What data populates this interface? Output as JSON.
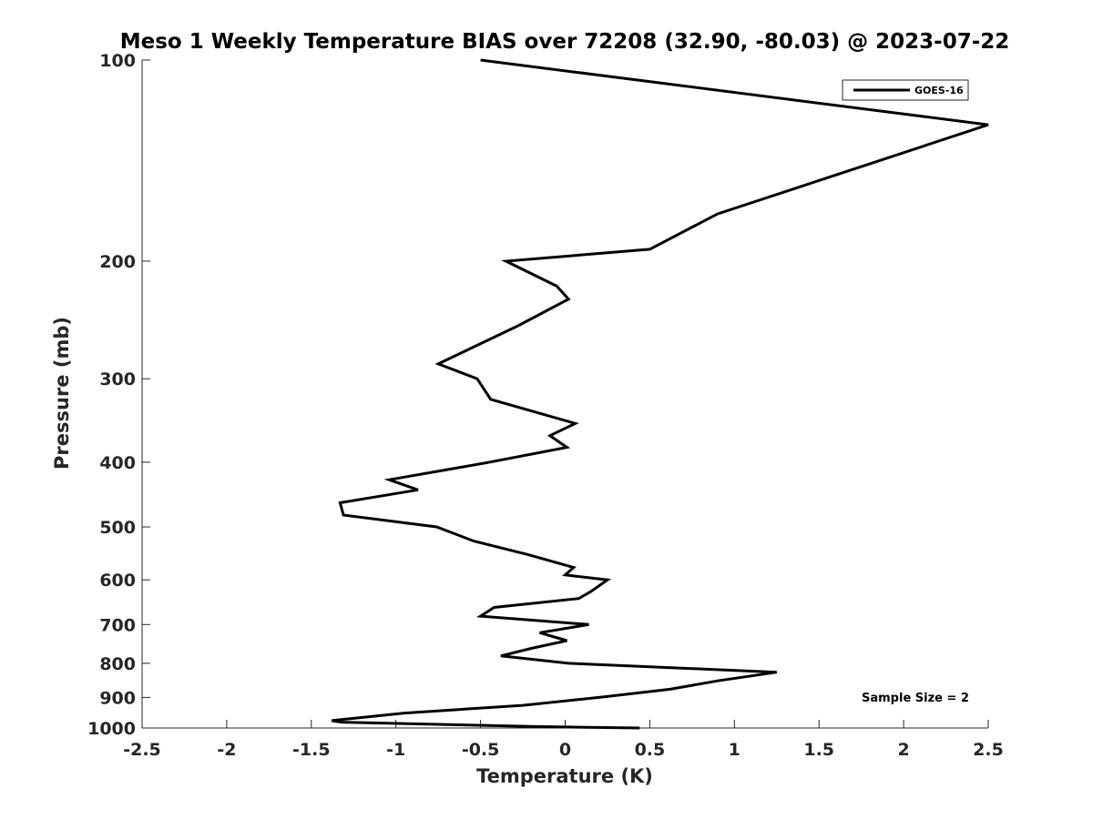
{
  "chart_data": {
    "type": "line",
    "title": "Meso 1 Weekly Temperature BIAS over 72208 (32.90, -80.03) @ 2023-07-22",
    "xlabel": "Temperature (K)",
    "ylabel": "Pressure (mb)",
    "xlim": [
      -2.5,
      2.5
    ],
    "ylim": [
      100,
      1000
    ],
    "y_scale": "log",
    "y_reversed": true,
    "grid": false,
    "x_ticks": [
      -2.5,
      -2,
      -1.5,
      -1,
      -0.5,
      0,
      0.5,
      1,
      1.5,
      2,
      2.5
    ],
    "x_tick_labels": [
      "-2.5",
      "-2",
      "-1.5",
      "-1",
      "-0.5",
      "0",
      "0.5",
      "1",
      "1.5",
      "2",
      "2.5"
    ],
    "y_ticks": [
      100,
      200,
      300,
      400,
      500,
      600,
      700,
      800,
      900,
      1000
    ],
    "y_tick_labels": [
      "100",
      "200",
      "300",
      "400",
      "500",
      "600",
      "700",
      "800",
      "900",
      "1000"
    ],
    "legend": {
      "placement": "top-right"
    },
    "annotation": "Sample Size = 2",
    "series": [
      {
        "name": "GOES-16",
        "color": "#000000",
        "points": [
          {
            "x": -0.5,
            "y": 100
          },
          {
            "x": 2.5,
            "y": 125
          },
          {
            "x": 1.55,
            "y": 150
          },
          {
            "x": 0.9,
            "y": 170
          },
          {
            "x": 0.5,
            "y": 192
          },
          {
            "x": -0.35,
            "y": 200
          },
          {
            "x": -0.05,
            "y": 218
          },
          {
            "x": 0.02,
            "y": 228
          },
          {
            "x": -0.28,
            "y": 250
          },
          {
            "x": -0.75,
            "y": 285
          },
          {
            "x": -0.52,
            "y": 300
          },
          {
            "x": -0.44,
            "y": 322
          },
          {
            "x": 0.06,
            "y": 350
          },
          {
            "x": -0.09,
            "y": 365
          },
          {
            "x": 0.01,
            "y": 380
          },
          {
            "x": -0.47,
            "y": 401
          },
          {
            "x": -1.04,
            "y": 425
          },
          {
            "x": -0.87,
            "y": 440
          },
          {
            "x": -1.33,
            "y": 460
          },
          {
            "x": -1.31,
            "y": 480
          },
          {
            "x": -0.76,
            "y": 500
          },
          {
            "x": -0.54,
            "y": 525
          },
          {
            "x": -0.22,
            "y": 550
          },
          {
            "x": 0.05,
            "y": 575
          },
          {
            "x": 0.0,
            "y": 590
          },
          {
            "x": 0.25,
            "y": 600
          },
          {
            "x": 0.15,
            "y": 625
          },
          {
            "x": 0.08,
            "y": 640
          },
          {
            "x": -0.42,
            "y": 660
          },
          {
            "x": -0.5,
            "y": 680
          },
          {
            "x": 0.14,
            "y": 700
          },
          {
            "x": -0.15,
            "y": 720
          },
          {
            "x": 0.01,
            "y": 740
          },
          {
            "x": -0.2,
            "y": 760
          },
          {
            "x": -0.38,
            "y": 780
          },
          {
            "x": 0.02,
            "y": 800
          },
          {
            "x": 1.25,
            "y": 825
          },
          {
            "x": 0.9,
            "y": 850
          },
          {
            "x": 0.62,
            "y": 875
          },
          {
            "x": 0.2,
            "y": 900
          },
          {
            "x": -0.25,
            "y": 925
          },
          {
            "x": -0.95,
            "y": 950
          },
          {
            "x": -1.38,
            "y": 975
          },
          {
            "x": -1.32,
            "y": 980
          },
          {
            "x": -0.18,
            "y": 995
          },
          {
            "x": 0.44,
            "y": 1000
          }
        ]
      }
    ]
  }
}
